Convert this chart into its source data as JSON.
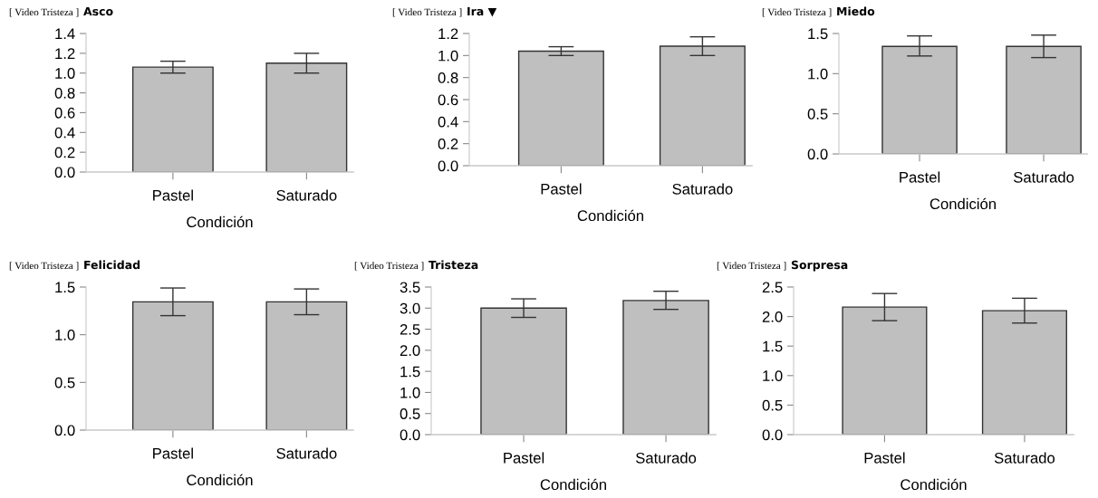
{
  "chart_data": [
    {
      "type": "bar",
      "subtitle": "[ Video Tristeza ]",
      "title": "Asco",
      "xlabel": "Condición",
      "categories": [
        "Pastel",
        "Saturado"
      ],
      "values": [
        1.06,
        1.1
      ],
      "errors": [
        [
          1.0,
          1.12
        ],
        [
          1.0,
          1.2
        ]
      ],
      "color": "#bfbfbf",
      "ylim": [
        0,
        1.4
      ],
      "yticks": [
        {
          "value": 0,
          "label": "0.0"
        },
        0.2,
        0.4,
        0.6,
        0.8,
        {
          "value": 1,
          "label": "1.0"
        },
        1.2,
        1.4
      ]
    },
    {
      "type": "bar",
      "subtitle": "[ Video Tristeza ]",
      "title": "Ira ▼",
      "xlabel": "Condición",
      "categories": [
        "Pastel",
        "Saturado"
      ],
      "values": [
        1.04,
        1.085
      ],
      "errors": [
        [
          1.0,
          1.08
        ],
        [
          1.0,
          1.17
        ]
      ],
      "color": "#bfbfbf",
      "ylim": [
        0,
        1.2
      ],
      "yticks": [
        {
          "value": 0,
          "label": "0.0"
        },
        0.2,
        0.4,
        0.6,
        0.8,
        {
          "value": 1,
          "label": "1.0"
        },
        1.2
      ]
    },
    {
      "type": "bar",
      "subtitle": "[ Video Tristeza ]",
      "title": "Miedo",
      "xlabel": "Condición",
      "categories": [
        "Pastel",
        "Saturado"
      ],
      "values": [
        1.34,
        1.34
      ],
      "errors": [
        [
          1.22,
          1.47
        ],
        [
          1.2,
          1.48
        ]
      ],
      "color": "#bfbfbf",
      "ylim": [
        0,
        1.5
      ],
      "yticks": [
        {
          "value": 0,
          "label": "0.0"
        },
        0.5,
        {
          "value": 1,
          "label": "1.0"
        },
        1.5
      ]
    },
    {
      "type": "bar",
      "subtitle": "[ Video Tristeza ]",
      "title": "Felicidad",
      "xlabel": "Condición",
      "categories": [
        "Pastel",
        "Saturado"
      ],
      "values": [
        1.345,
        1.345
      ],
      "errors": [
        [
          1.2,
          1.49
        ],
        [
          1.21,
          1.48
        ]
      ],
      "color": "#bfbfbf",
      "ylim": [
        0,
        1.5
      ],
      "yticks": [
        {
          "value": 0,
          "label": "0.0"
        },
        0.5,
        {
          "value": 1,
          "label": "1.0"
        },
        1.5
      ]
    },
    {
      "type": "bar",
      "subtitle": "[ Video Tristeza ]",
      "title": "Tristeza",
      "xlabel": "Condición",
      "categories": [
        "Pastel",
        "Saturado"
      ],
      "values": [
        3.0,
        3.18
      ],
      "errors": [
        [
          2.78,
          3.22
        ],
        [
          2.97,
          3.4
        ]
      ],
      "color": "#bfbfbf",
      "ylim": [
        0,
        3.5
      ],
      "yticks": [
        {
          "value": 0,
          "label": "0.0"
        },
        0.5,
        {
          "value": 1,
          "label": "1.0"
        },
        1.5,
        {
          "value": 2,
          "label": "2.0"
        },
        2.5,
        {
          "value": 3,
          "label": "3.0"
        },
        3.5
      ]
    },
    {
      "type": "bar",
      "subtitle": "[ Video Tristeza ]",
      "title": "Sorpresa",
      "xlabel": "Condición",
      "categories": [
        "Pastel",
        "Saturado"
      ],
      "values": [
        2.16,
        2.1
      ],
      "errors": [
        [
          1.93,
          2.39
        ],
        [
          1.89,
          2.31
        ]
      ],
      "color": "#bfbfbf",
      "ylim": [
        0,
        2.5
      ],
      "yticks": [
        {
          "value": 0,
          "label": "0.0"
        },
        0.5,
        {
          "value": 1,
          "label": "1.0"
        },
        1.5,
        {
          "value": 2,
          "label": "2.0"
        },
        2.5
      ]
    }
  ]
}
